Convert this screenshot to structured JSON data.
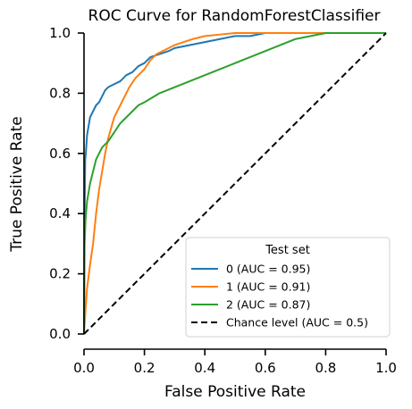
{
  "chart_data": {
    "type": "line",
    "title": "ROC Curve for RandomForestClassifier",
    "xlabel": "False Positive Rate",
    "ylabel": "True Positive Rate",
    "xlim": [
      0,
      1
    ],
    "ylim": [
      0,
      1
    ],
    "xticks": [
      "0.0",
      "0.2",
      "0.4",
      "0.6",
      "0.8",
      "1.0"
    ],
    "yticks": [
      "0.0",
      "0.2",
      "0.4",
      "0.6",
      "0.8",
      "1.0"
    ],
    "grid": false,
    "legend": {
      "title": "Test set",
      "placement": "bottom-right"
    },
    "series": [
      {
        "name": "0 (AUC = 0.95)",
        "color": "#1f77b4",
        "x": [
          0,
          0.002,
          0.004,
          0.006,
          0.01,
          0.015,
          0.02,
          0.03,
          0.04,
          0.05,
          0.06,
          0.07,
          0.08,
          0.1,
          0.12,
          0.14,
          0.16,
          0.18,
          0.2,
          0.22,
          0.25,
          0.28,
          0.3,
          0.35,
          0.4,
          0.45,
          0.5,
          0.55,
          0.6,
          0.7,
          0.8,
          0.9,
          1.0
        ],
        "y": [
          0,
          0.4,
          0.58,
          0.6,
          0.66,
          0.69,
          0.72,
          0.74,
          0.76,
          0.77,
          0.79,
          0.81,
          0.82,
          0.83,
          0.84,
          0.86,
          0.87,
          0.89,
          0.9,
          0.92,
          0.93,
          0.94,
          0.95,
          0.96,
          0.97,
          0.98,
          0.99,
          0.99,
          1.0,
          1.0,
          1.0,
          1.0,
          1.0
        ]
      },
      {
        "name": "1 (AUC = 0.91)",
        "color": "#ff7f0e",
        "x": [
          0,
          0.005,
          0.01,
          0.02,
          0.03,
          0.04,
          0.05,
          0.06,
          0.07,
          0.08,
          0.1,
          0.12,
          0.14,
          0.15,
          0.17,
          0.2,
          0.22,
          0.24,
          0.26,
          0.28,
          0.3,
          0.33,
          0.36,
          0.4,
          0.45,
          0.5,
          0.55,
          0.6,
          0.7,
          0.8,
          0.9,
          1.0
        ],
        "y": [
          0,
          0.08,
          0.15,
          0.23,
          0.3,
          0.4,
          0.48,
          0.54,
          0.6,
          0.65,
          0.72,
          0.76,
          0.8,
          0.82,
          0.85,
          0.88,
          0.91,
          0.93,
          0.94,
          0.95,
          0.96,
          0.97,
          0.98,
          0.99,
          0.995,
          1.0,
          1.0,
          1.0,
          1.0,
          1.0,
          1.0,
          1.0
        ]
      },
      {
        "name": "2 (AUC = 0.87)",
        "color": "#2ca02c",
        "x": [
          0,
          0.002,
          0.005,
          0.01,
          0.02,
          0.03,
          0.04,
          0.05,
          0.06,
          0.08,
          0.1,
          0.12,
          0.14,
          0.16,
          0.18,
          0.2,
          0.25,
          0.3,
          0.35,
          0.4,
          0.45,
          0.5,
          0.55,
          0.6,
          0.65,
          0.7,
          0.75,
          0.8,
          0.85,
          0.9,
          1.0
        ],
        "y": [
          0,
          0.3,
          0.38,
          0.44,
          0.5,
          0.54,
          0.58,
          0.6,
          0.62,
          0.64,
          0.67,
          0.7,
          0.72,
          0.74,
          0.76,
          0.77,
          0.8,
          0.82,
          0.84,
          0.86,
          0.88,
          0.9,
          0.92,
          0.94,
          0.96,
          0.98,
          0.99,
          1.0,
          1.0,
          1.0,
          1.0
        ]
      },
      {
        "name": "Chance level (AUC = 0.5)",
        "color": "#000000",
        "dashed": true,
        "x": [
          0,
          1
        ],
        "y": [
          0,
          1
        ]
      }
    ]
  }
}
